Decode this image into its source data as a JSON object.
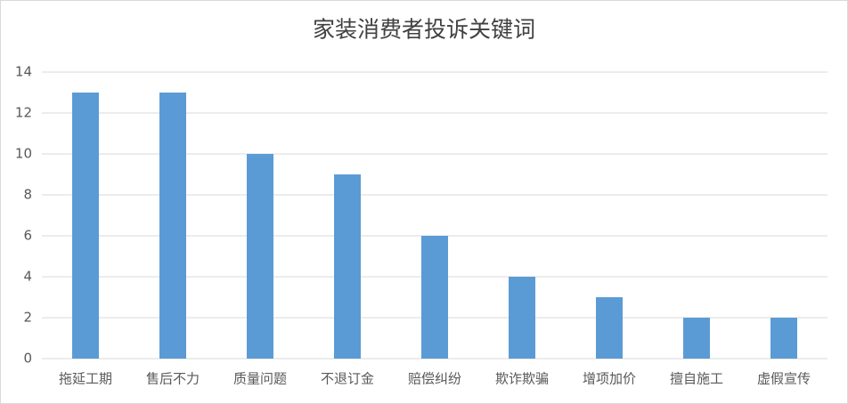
{
  "chart_data": {
    "type": "bar",
    "title": "家装消费者投诉关键词",
    "categories": [
      "拖延工期",
      "售后不力",
      "质量问题",
      "不退订金",
      "赔偿纠纷",
      "欺诈欺骗",
      "增项加价",
      "擅自施工",
      "虚假宣传"
    ],
    "values": [
      13,
      13,
      10,
      9,
      6,
      4,
      3,
      2,
      2
    ],
    "color": "#5b9bd5",
    "ylim": [
      0,
      14
    ],
    "yticks": [
      0,
      2,
      4,
      6,
      8,
      10,
      12,
      14
    ],
    "grid": true
  }
}
